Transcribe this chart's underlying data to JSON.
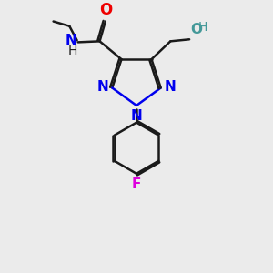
{
  "bg_color": "#ebebeb",
  "bond_color": "#1a1a1a",
  "N_color": "#0000ee",
  "O_color": "#ee0000",
  "F_color": "#dd00dd",
  "OH_color": "#449999",
  "line_width": 1.8,
  "font_size": 11,
  "fig_w": 3.0,
  "fig_h": 3.0,
  "dpi": 100,
  "xlim": [
    -0.05,
    1.05
  ],
  "ylim": [
    -0.62,
    0.78
  ]
}
